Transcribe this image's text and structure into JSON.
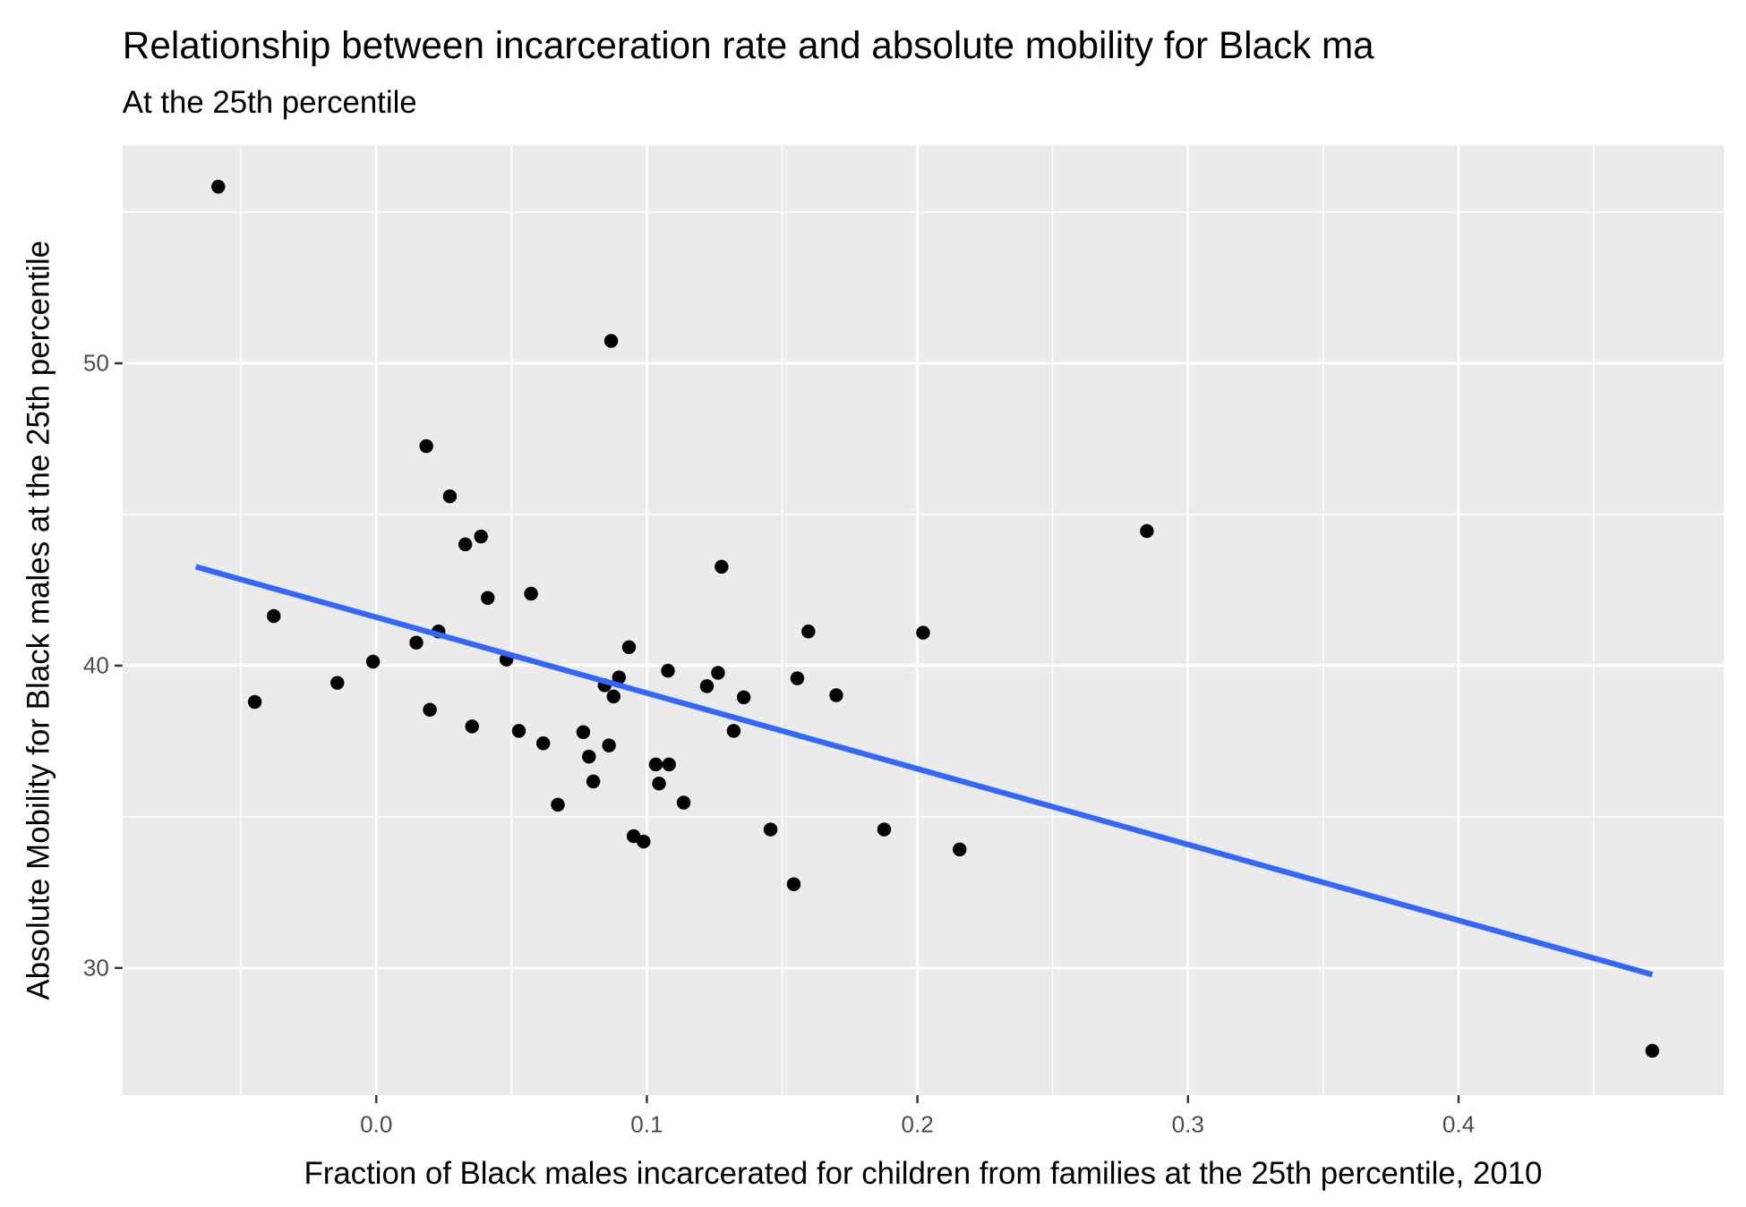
{
  "chart_data": {
    "type": "scatter",
    "title": "Relationship between incarceration rate and absolute mobility for Black ma",
    "subtitle": "At the 25th percentile",
    "x_label": "Fraction of Black males incarcerated for children from families at the 25th percentile, 2010",
    "y_label": "Absolute Mobility for Black males at the 25th percentile",
    "xlim": [
      -0.0938,
      0.498
    ],
    "ylim": [
      25.79,
      57.21
    ],
    "xticks": [
      {
        "value": 0,
        "label": "0.0"
      },
      0.1,
      0.2,
      0.3,
      0.4
    ],
    "yticks": [
      30,
      40,
      50
    ],
    "grid": true,
    "color": "#000000",
    "x": [
      -0.0584,
      0.0868,
      0.0185,
      0.0272,
      0.0329,
      0.0387,
      0.2848,
      0.1276,
      0.0572,
      0.0412,
      -0.0379,
      0.023,
      0.1597,
      0.2021,
      0.0148,
      0.0934,
      -0.0012,
      0.0481,
      0.1078,
      0.1263,
      0.0897,
      0.1556,
      -0.0144,
      0.0844,
      0.1222,
      0.0877,
      0.1358,
      0.17,
      -0.0449,
      0.0198,
      0.0354,
      0.0527,
      0.1321,
      0.0765,
      0.0617,
      0.086,
      0.0786,
      0.1033,
      0.1082,
      0.0802,
      0.1045,
      0.1136,
      0.0671,
      0.1457,
      0.1877,
      0.0951,
      0.0988,
      0.2156,
      0.1543,
      0.4716
    ],
    "values": [
      55.84,
      50.74,
      47.26,
      45.6,
      44.01,
      44.27,
      44.45,
      43.27,
      42.38,
      42.24,
      41.64,
      41.13,
      41.13,
      41.09,
      40.76,
      40.61,
      40.13,
      40.2,
      39.83,
      39.76,
      39.61,
      39.58,
      39.43,
      39.35,
      39.32,
      38.98,
      38.95,
      39.02,
      38.8,
      38.54,
      37.99,
      37.84,
      37.84,
      37.8,
      37.43,
      37.36,
      36.99,
      36.73,
      36.73,
      36.17,
      36.1,
      35.47,
      35.4,
      34.58,
      34.58,
      34.36,
      34.18,
      33.92,
      32.77,
      27.26
    ],
    "fit": {
      "color": "#3366ff",
      "x": [
        -0.0667,
        0.4716
      ],
      "values": [
        43.27,
        29.78
      ]
    }
  }
}
